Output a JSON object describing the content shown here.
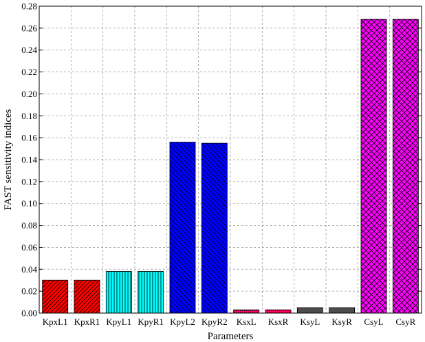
{
  "chart_data": {
    "type": "bar",
    "xlabel": "Parameters",
    "ylabel": "FAST sensitivity indices",
    "ylim": [
      0,
      0.28
    ],
    "yticks": [
      "0.00",
      "0.02",
      "0.04",
      "0.06",
      "0.08",
      "0.10",
      "0.12",
      "0.14",
      "0.16",
      "0.18",
      "0.20",
      "0.22",
      "0.24",
      "0.26",
      "0.28"
    ],
    "grid": true,
    "categories": [
      "KpxL1",
      "KpxR1",
      "KpyL1",
      "KpyR1",
      "KpyL2",
      "KpyR2",
      "KsxL",
      "KsxR",
      "KsyL",
      "KsyR",
      "CsyL",
      "CsyR"
    ],
    "values": [
      0.03,
      0.03,
      0.038,
      0.038,
      0.156,
      0.155,
      0.003,
      0.003,
      0.005,
      0.005,
      0.268,
      0.268
    ],
    "bar_colors": [
      "#ff0000",
      "#ff0000",
      "#00ffff",
      "#00ffff",
      "#0000ff",
      "#0000ff",
      "#ff0066",
      "#ff0066",
      "#808080",
      "#808080",
      "#ff00ff",
      "#ff00ff"
    ],
    "bar_patterns": [
      "diag-up",
      "diag-up",
      "vertical",
      "vertical",
      "diag-down",
      "diag-down",
      "dots",
      "dots",
      "vertical-dense",
      "vertical-dense",
      "crosshatch",
      "crosshatch"
    ]
  }
}
